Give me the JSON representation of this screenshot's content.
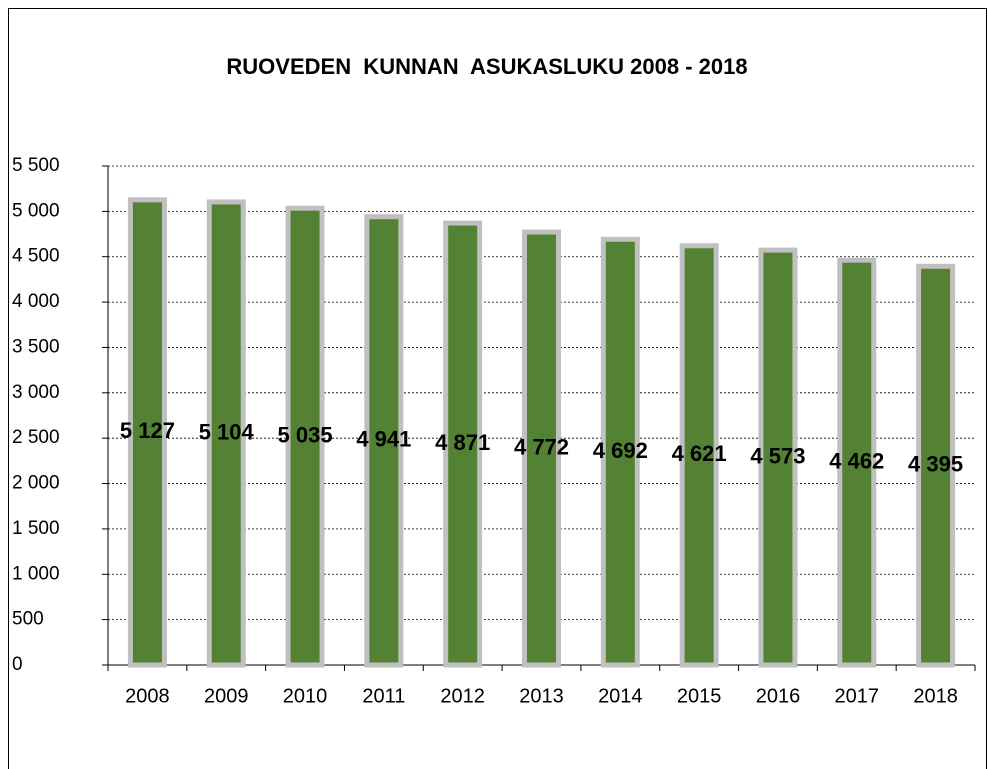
{
  "chart_data": {
    "type": "bar",
    "title": "RUOVEDEN  KUNNAN  ASUKASLUKU 2008 - 2018",
    "categories": [
      "2008",
      "2009",
      "2010",
      "2011",
      "2012",
      "2013",
      "2014",
      "2015",
      "2016",
      "2017",
      "2018"
    ],
    "values": [
      5127,
      5104,
      5035,
      4941,
      4871,
      4772,
      4692,
      4621,
      4573,
      4462,
      4395
    ],
    "value_labels": [
      "5 127",
      "5 104",
      "5 035",
      "4 941",
      "4 871",
      "4 772",
      "4 692",
      "4 621",
      "4 573",
      "4 462",
      "4 395"
    ],
    "color": "#548235",
    "ylim": [
      0,
      5500
    ],
    "yticks": [
      0,
      500,
      {
        "value": 1000,
        "label": "1 000"
      },
      {
        "value": 1500,
        "label": "1 500"
      },
      {
        "value": 2000,
        "label": "2 000"
      },
      {
        "value": 2500,
        "label": "2 500"
      },
      {
        "value": 3000,
        "label": "3 000"
      },
      {
        "value": 3500,
        "label": "3 500"
      },
      {
        "value": 4000,
        "label": "4 000"
      },
      {
        "value": 4500,
        "label": "4 500"
      },
      {
        "value": 5000,
        "label": "5 000"
      },
      {
        "value": 5500,
        "label": "5 500"
      }
    ],
    "grid": true
  }
}
